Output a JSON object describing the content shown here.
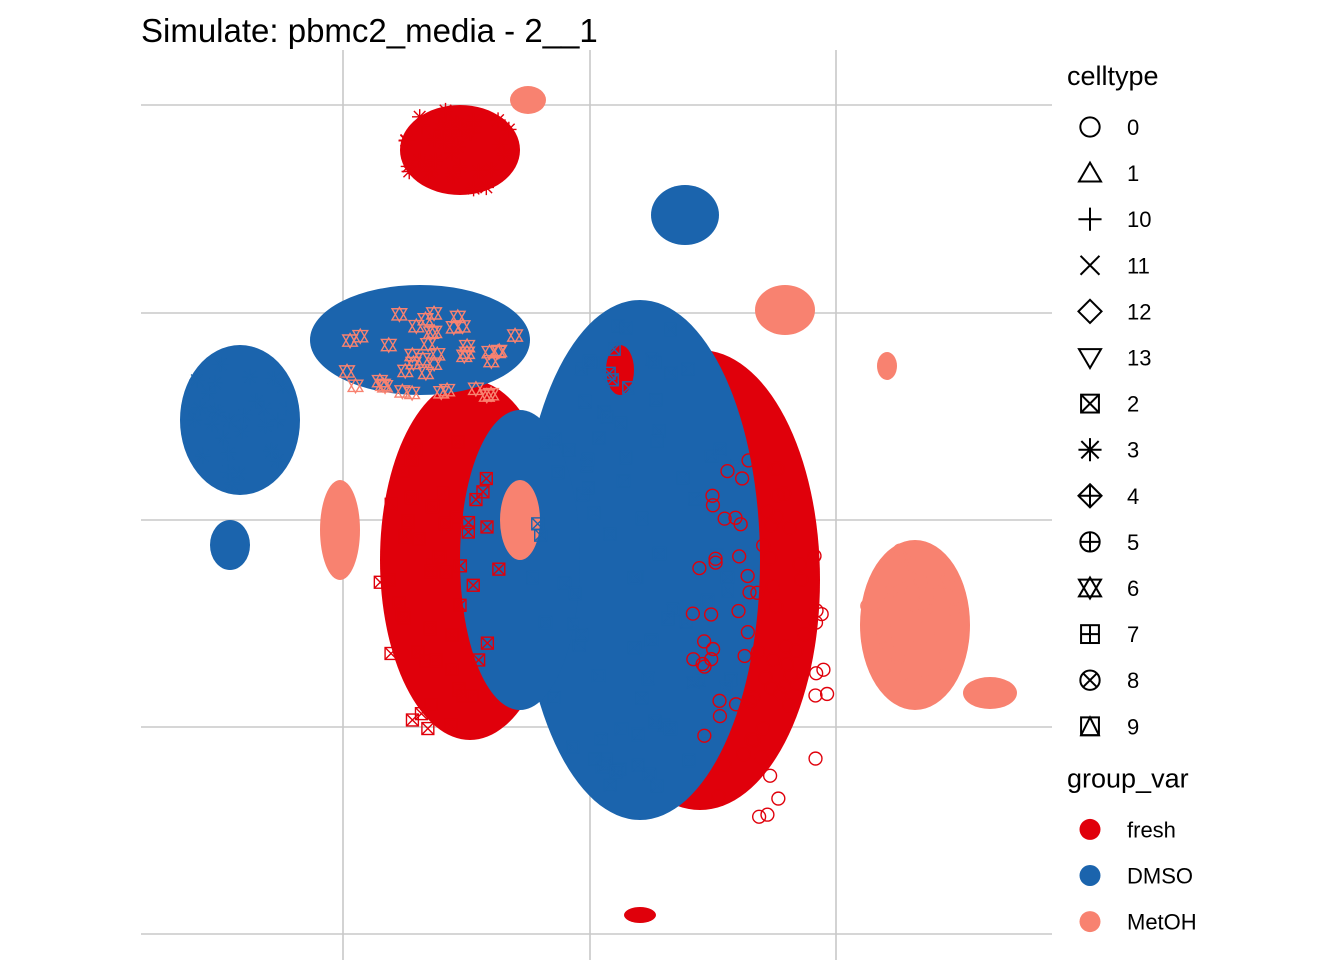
{
  "chart_data": {
    "type": "scatter",
    "title": "Simulate: pbmc2_media - 2__1",
    "xlabel": "",
    "ylabel": "",
    "grid": true,
    "axis_ticks_visible": false,
    "legend_position": "right",
    "legends": [
      {
        "id": "celltype",
        "title": "celltype",
        "kind": "shape",
        "entries": [
          {
            "label": "0",
            "shape": "circle-open"
          },
          {
            "label": "1",
            "shape": "triangle-open"
          },
          {
            "label": "10",
            "shape": "plus"
          },
          {
            "label": "11",
            "shape": "cross"
          },
          {
            "label": "12",
            "shape": "diamond-open"
          },
          {
            "label": "13",
            "shape": "triangle-down-open"
          },
          {
            "label": "2",
            "shape": "square-cross"
          },
          {
            "label": "3",
            "shape": "asterisk"
          },
          {
            "label": "4",
            "shape": "diamond-plus"
          },
          {
            "label": "5",
            "shape": "circle-plus"
          },
          {
            "label": "6",
            "shape": "triangle-up-down"
          },
          {
            "label": "7",
            "shape": "square-plus"
          },
          {
            "label": "8",
            "shape": "circle-cross"
          },
          {
            "label": "9",
            "shape": "square-triangle"
          }
        ]
      },
      {
        "id": "group_var",
        "title": "group_var",
        "kind": "color",
        "entries": [
          {
            "label": "fresh",
            "color": "#e0000b"
          },
          {
            "label": "DMSO",
            "color": "#1b64ad"
          },
          {
            "label": "MetOH",
            "color": "#f88270"
          }
        ]
      }
    ],
    "series": [
      {
        "name": "fresh",
        "color": "#e0000b"
      },
      {
        "name": "DMSO",
        "color": "#1b64ad"
      },
      {
        "name": "MetOH",
        "color": "#f88270"
      }
    ]
  }
}
